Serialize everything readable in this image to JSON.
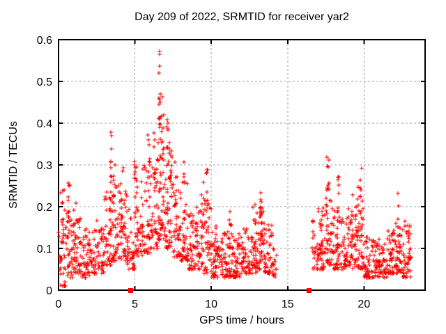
{
  "chart_data": {
    "type": "scatter",
    "title": "Day 209 of 2022, SRMTID for receiver yar2",
    "xlabel": "GPS time / hours",
    "ylabel": "SRMTID / TECUs",
    "xlim": [
      0,
      24
    ],
    "ylim": [
      0,
      0.6
    ],
    "xticks": [
      0,
      5,
      10,
      15,
      20
    ],
    "xtick_labels": [
      "0",
      "5",
      "10",
      "15",
      "20"
    ],
    "yticks": [
      0,
      0.1,
      0.2,
      0.3,
      0.4,
      0.5,
      0.6
    ],
    "ytick_labels": [
      "0",
      "0.1",
      "0.2",
      "0.3",
      "0.4",
      "0.5",
      "0.6"
    ],
    "grid": "dashed",
    "grid_color": "#a0a0a0",
    "border_color": "#000000",
    "legend": "none",
    "marker": "plus",
    "marker_size_px": 7,
    "point_color": "#ff0000",
    "data_gap_hours": [
      14.3,
      16.6
    ],
    "square_marker_points": [
      [
        4.72,
        0
      ],
      [
        16.36,
        0
      ]
    ],
    "extra_peak_points": [
      [
        6.6,
        0.571
      ],
      [
        6.63,
        0.565
      ],
      [
        6.6,
        0.537
      ],
      [
        6.57,
        0.52
      ],
      [
        7.1,
        0.408
      ]
    ],
    "bands_format": "[hour_start, hour_end, count, y_min, y_max]",
    "scatter_bands": [
      [
        0.0,
        0.5,
        40,
        0.01,
        0.24
      ],
      [
        0.5,
        1.0,
        42,
        0.03,
        0.2
      ],
      [
        1.0,
        1.5,
        40,
        0.04,
        0.18
      ],
      [
        1.5,
        2.0,
        38,
        0.03,
        0.16
      ],
      [
        2.0,
        2.5,
        36,
        0.04,
        0.15
      ],
      [
        2.5,
        3.0,
        36,
        0.04,
        0.17
      ],
      [
        3.0,
        3.5,
        40,
        0.06,
        0.24
      ],
      [
        3.5,
        4.0,
        42,
        0.07,
        0.26
      ],
      [
        4.0,
        4.5,
        40,
        0.07,
        0.24
      ],
      [
        4.5,
        5.0,
        36,
        0.05,
        0.22
      ],
      [
        5.0,
        5.5,
        40,
        0.08,
        0.26
      ],
      [
        5.5,
        6.0,
        40,
        0.09,
        0.3
      ],
      [
        6.0,
        6.5,
        42,
        0.1,
        0.32
      ],
      [
        6.5,
        7.0,
        46,
        0.12,
        0.34
      ],
      [
        7.0,
        7.5,
        44,
        0.1,
        0.32
      ],
      [
        7.5,
        8.0,
        40,
        0.08,
        0.28
      ],
      [
        8.0,
        8.5,
        40,
        0.07,
        0.26
      ],
      [
        8.5,
        9.0,
        38,
        0.05,
        0.2
      ],
      [
        9.0,
        9.5,
        38,
        0.05,
        0.2
      ],
      [
        9.5,
        10.0,
        38,
        0.04,
        0.22
      ],
      [
        10.0,
        10.5,
        40,
        0.03,
        0.16
      ],
      [
        10.5,
        11.0,
        40,
        0.03,
        0.14
      ],
      [
        11.0,
        11.5,
        40,
        0.03,
        0.16
      ],
      [
        11.5,
        12.0,
        40,
        0.03,
        0.14
      ],
      [
        12.0,
        12.5,
        40,
        0.04,
        0.15
      ],
      [
        12.5,
        13.0,
        40,
        0.04,
        0.18
      ],
      [
        13.0,
        13.5,
        40,
        0.05,
        0.2
      ],
      [
        13.5,
        14.0,
        36,
        0.04,
        0.16
      ],
      [
        14.0,
        14.3,
        16,
        0.03,
        0.1
      ],
      [
        16.6,
        17.0,
        26,
        0.05,
        0.18
      ],
      [
        17.0,
        17.5,
        36,
        0.05,
        0.2
      ],
      [
        17.5,
        18.0,
        40,
        0.06,
        0.22
      ],
      [
        18.0,
        18.5,
        40,
        0.05,
        0.2
      ],
      [
        18.5,
        19.0,
        38,
        0.05,
        0.18
      ],
      [
        19.0,
        19.5,
        38,
        0.05,
        0.2
      ],
      [
        19.5,
        20.0,
        40,
        0.05,
        0.22
      ],
      [
        20.0,
        20.5,
        40,
        0.03,
        0.13
      ],
      [
        20.5,
        21.0,
        40,
        0.03,
        0.12
      ],
      [
        21.0,
        21.5,
        40,
        0.03,
        0.13
      ],
      [
        21.5,
        22.0,
        40,
        0.04,
        0.15
      ],
      [
        22.0,
        22.5,
        40,
        0.04,
        0.17
      ],
      [
        22.5,
        23.05,
        44,
        0.03,
        0.18
      ]
    ],
    "columns_format": "[hour_center, count, y_min, y_max]",
    "burst_columns": [
      [
        0.3,
        6,
        0.15,
        0.24
      ],
      [
        0.65,
        10,
        0.12,
        0.26
      ],
      [
        1.15,
        6,
        0.12,
        0.21
      ],
      [
        3.4,
        14,
        0.14,
        0.38
      ],
      [
        3.65,
        8,
        0.15,
        0.31
      ],
      [
        4.15,
        10,
        0.14,
        0.335
      ],
      [
        5.05,
        12,
        0.18,
        0.34
      ],
      [
        5.9,
        10,
        0.26,
        0.378
      ],
      [
        6.25,
        8,
        0.25,
        0.39
      ],
      [
        6.6,
        16,
        0.3,
        0.5
      ],
      [
        6.8,
        10,
        0.3,
        0.47
      ],
      [
        7.1,
        8,
        0.28,
        0.405
      ],
      [
        7.3,
        8,
        0.25,
        0.36
      ],
      [
        7.7,
        8,
        0.16,
        0.31
      ],
      [
        8.2,
        8,
        0.15,
        0.31
      ],
      [
        9.0,
        6,
        0.12,
        0.22
      ],
      [
        9.45,
        8,
        0.12,
        0.26
      ],
      [
        9.7,
        8,
        0.14,
        0.29
      ],
      [
        10.3,
        6,
        0.08,
        0.18
      ],
      [
        11.2,
        7,
        0.08,
        0.21
      ],
      [
        12.8,
        7,
        0.08,
        0.22
      ],
      [
        13.25,
        12,
        0.1,
        0.245
      ],
      [
        17.1,
        7,
        0.08,
        0.22
      ],
      [
        17.65,
        12,
        0.12,
        0.32
      ],
      [
        18.3,
        9,
        0.1,
        0.28
      ],
      [
        19.2,
        9,
        0.1,
        0.27
      ],
      [
        19.55,
        8,
        0.12,
        0.25
      ],
      [
        19.8,
        10,
        0.1,
        0.3
      ],
      [
        22.3,
        8,
        0.08,
        0.24
      ],
      [
        23.0,
        10,
        0.04,
        0.17
      ]
    ]
  }
}
